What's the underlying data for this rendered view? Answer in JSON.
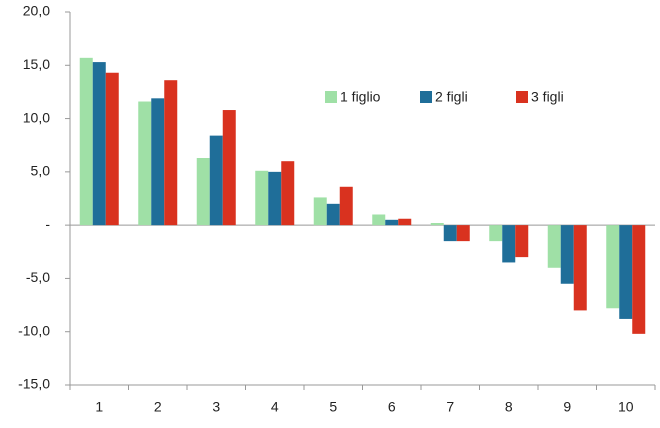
{
  "chart_data": {
    "type": "bar",
    "categories": [
      "1",
      "2",
      "3",
      "4",
      "5",
      "6",
      "7",
      "8",
      "9",
      "10"
    ],
    "series": [
      {
        "name": "1 figlio",
        "color": "#9fe0a6",
        "values": [
          15.7,
          11.6,
          6.3,
          5.1,
          2.6,
          1.0,
          0.2,
          -1.5,
          -4.0,
          -7.8
        ]
      },
      {
        "name": "2 figli",
        "color": "#1f6e99",
        "values": [
          15.3,
          11.9,
          8.4,
          5.0,
          2.0,
          0.5,
          -1.5,
          -3.5,
          -5.5,
          -8.8
        ]
      },
      {
        "name": "3 figli",
        "color": "#d9321f",
        "values": [
          14.3,
          13.6,
          10.8,
          6.0,
          3.6,
          0.6,
          -1.5,
          -3.0,
          -8.0,
          -10.2
        ]
      }
    ],
    "ylim": [
      -15,
      20
    ],
    "yticks": [
      {
        "value": -15,
        "label": "-15,0"
      },
      {
        "value": -10,
        "label": "-10,0"
      },
      {
        "value": -5,
        "label": "-5,0"
      },
      {
        "value": 0,
        "label": "-"
      },
      {
        "value": 5,
        "label": "5,0"
      },
      {
        "value": 10,
        "label": "10,0"
      },
      {
        "value": 15,
        "label": "15,0"
      },
      {
        "value": 20,
        "label": "20,0"
      }
    ]
  }
}
